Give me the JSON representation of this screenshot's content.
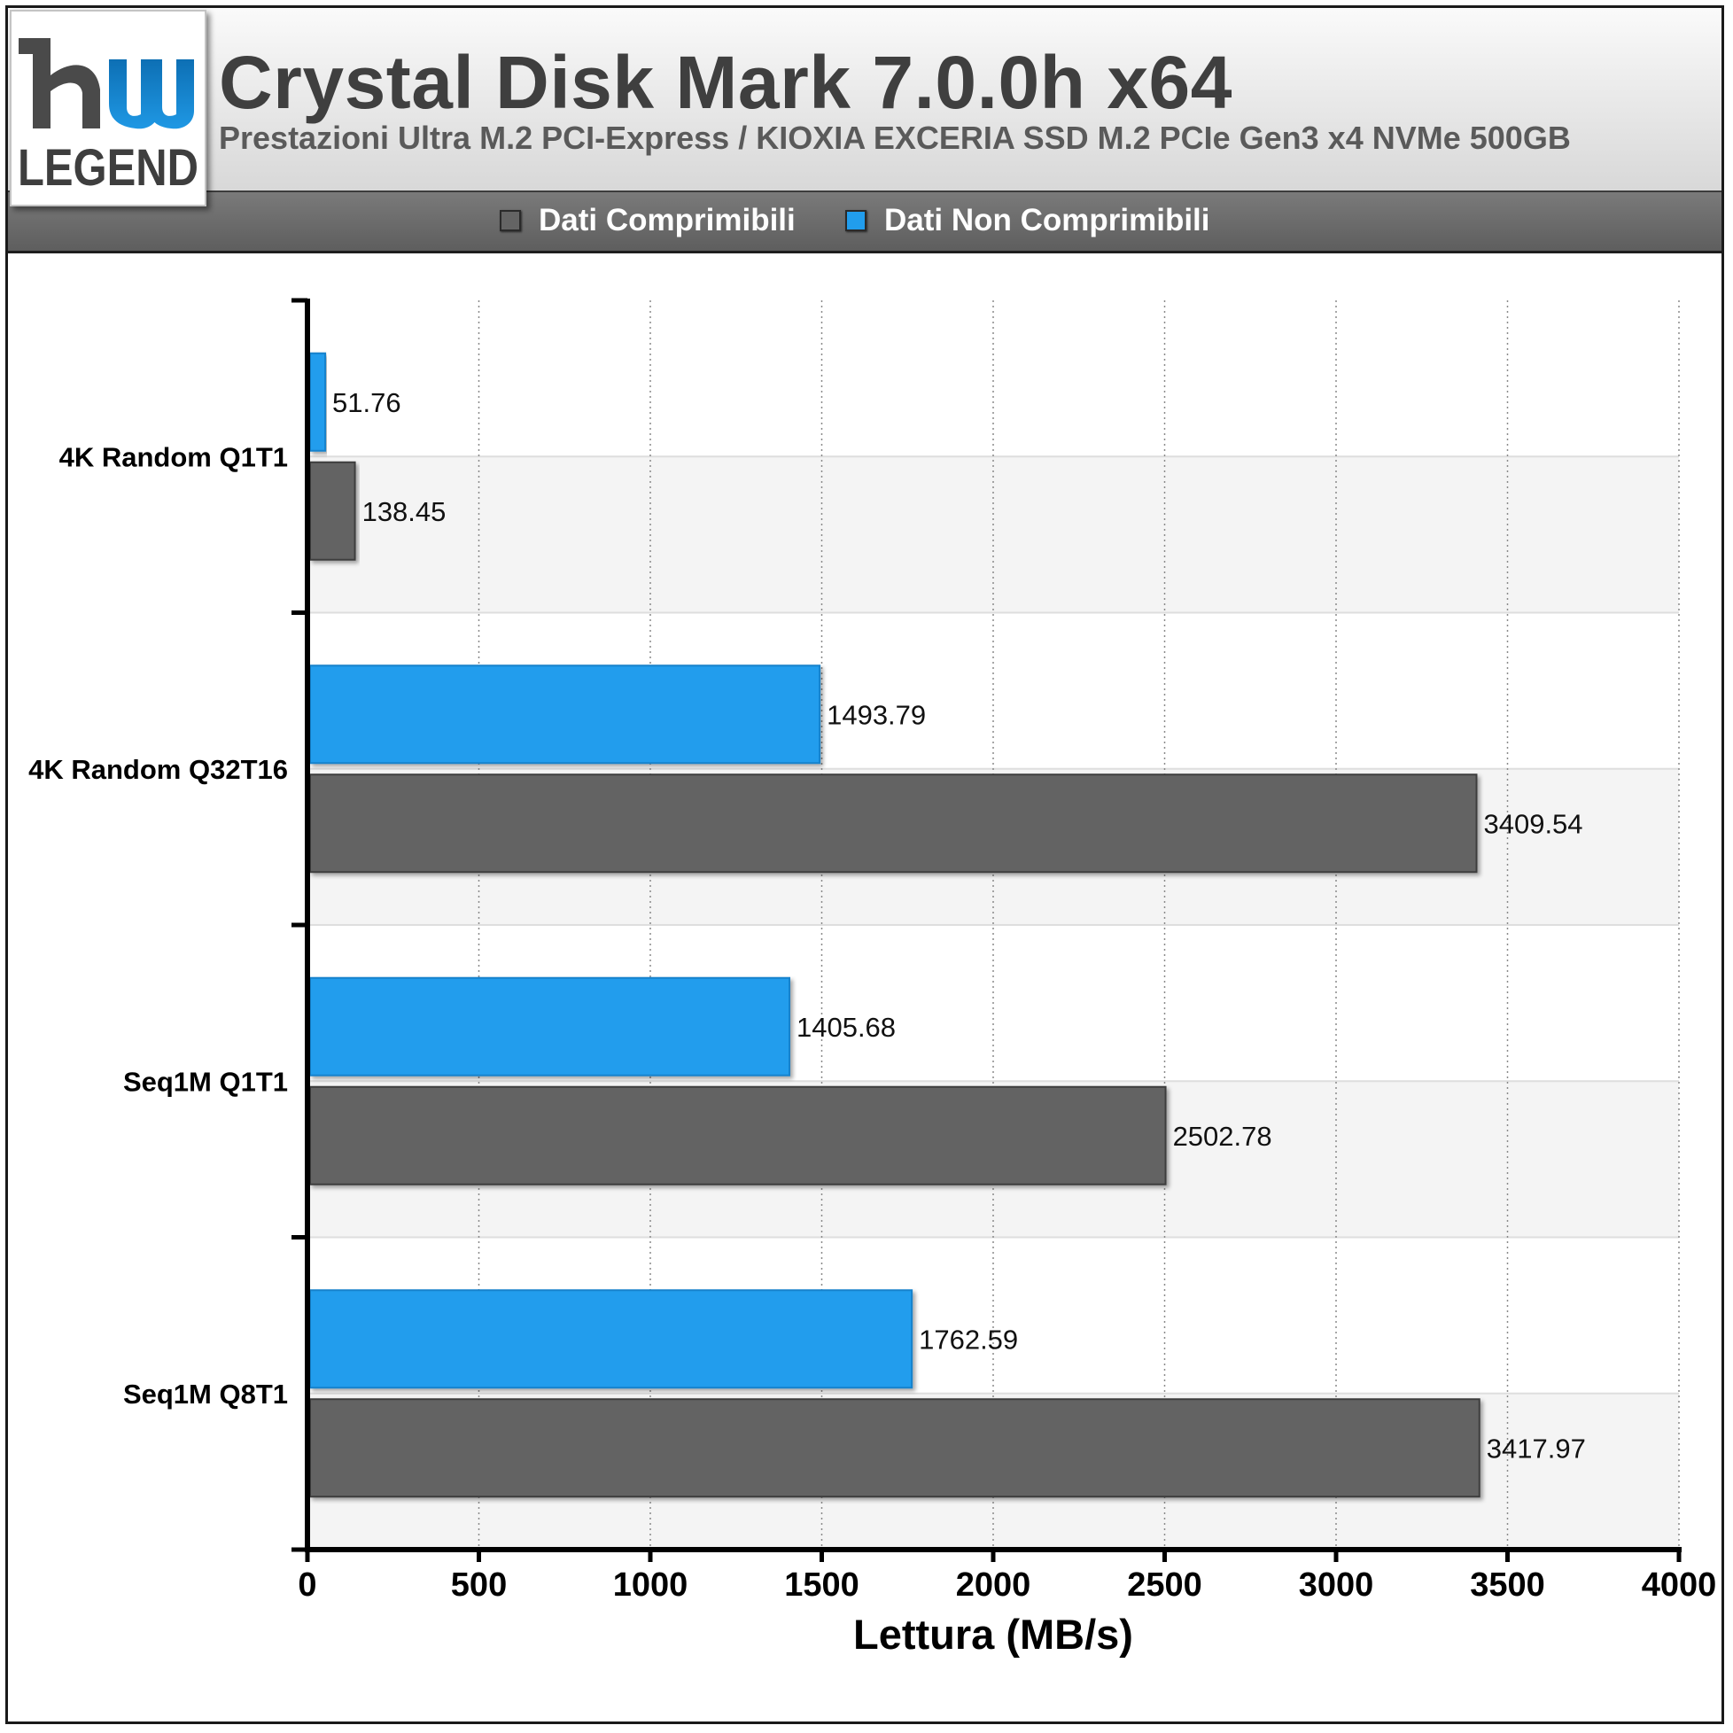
{
  "header": {
    "title": "Crystal Disk Mark 7.0.0h x64",
    "subtitle": "Prestazioni Ultra M.2 PCI-Express / KIOXIA EXCERIA SSD M.2 PCIe Gen3 x4 NVMe 500GB"
  },
  "logo": {
    "mark": "hw",
    "text": "LEGEND"
  },
  "colors": {
    "series_compressible": "#646464",
    "series_non_compressible": "#219ded",
    "background_band": "#f4f4f4",
    "axis": "#000000"
  },
  "chart_data": {
    "type": "bar",
    "orientation": "horizontal",
    "categories": [
      "4K Random Q1T1",
      "4K Random Q32T16",
      "Seq1M Q1T1",
      "Seq1M Q8T1"
    ],
    "series": [
      {
        "name": "Dati Comprimibili",
        "color": "#646464",
        "values": [
          138.45,
          3409.54,
          2502.78,
          3417.97
        ]
      },
      {
        "name": "Dati Non Comprimibili",
        "color": "#219ded",
        "values": [
          51.76,
          1493.79,
          1405.68,
          1762.59
        ]
      }
    ],
    "value_labels": {
      "Dati Comprimibili": [
        "138.45",
        "3409.54",
        "2502.78",
        "3417.97"
      ],
      "Dati Non Comprimibili": [
        "51.76",
        "1493.79",
        "1405.68",
        "1762.59"
      ]
    },
    "xlabel": "Lettura (MB/s)",
    "ylabel": "",
    "xlim": [
      0,
      4000
    ],
    "xticks": [
      0,
      500,
      1000,
      1500,
      2000,
      2500,
      3000,
      3500,
      4000
    ],
    "grid": "vertical dotted",
    "legend_position": "top-center"
  }
}
